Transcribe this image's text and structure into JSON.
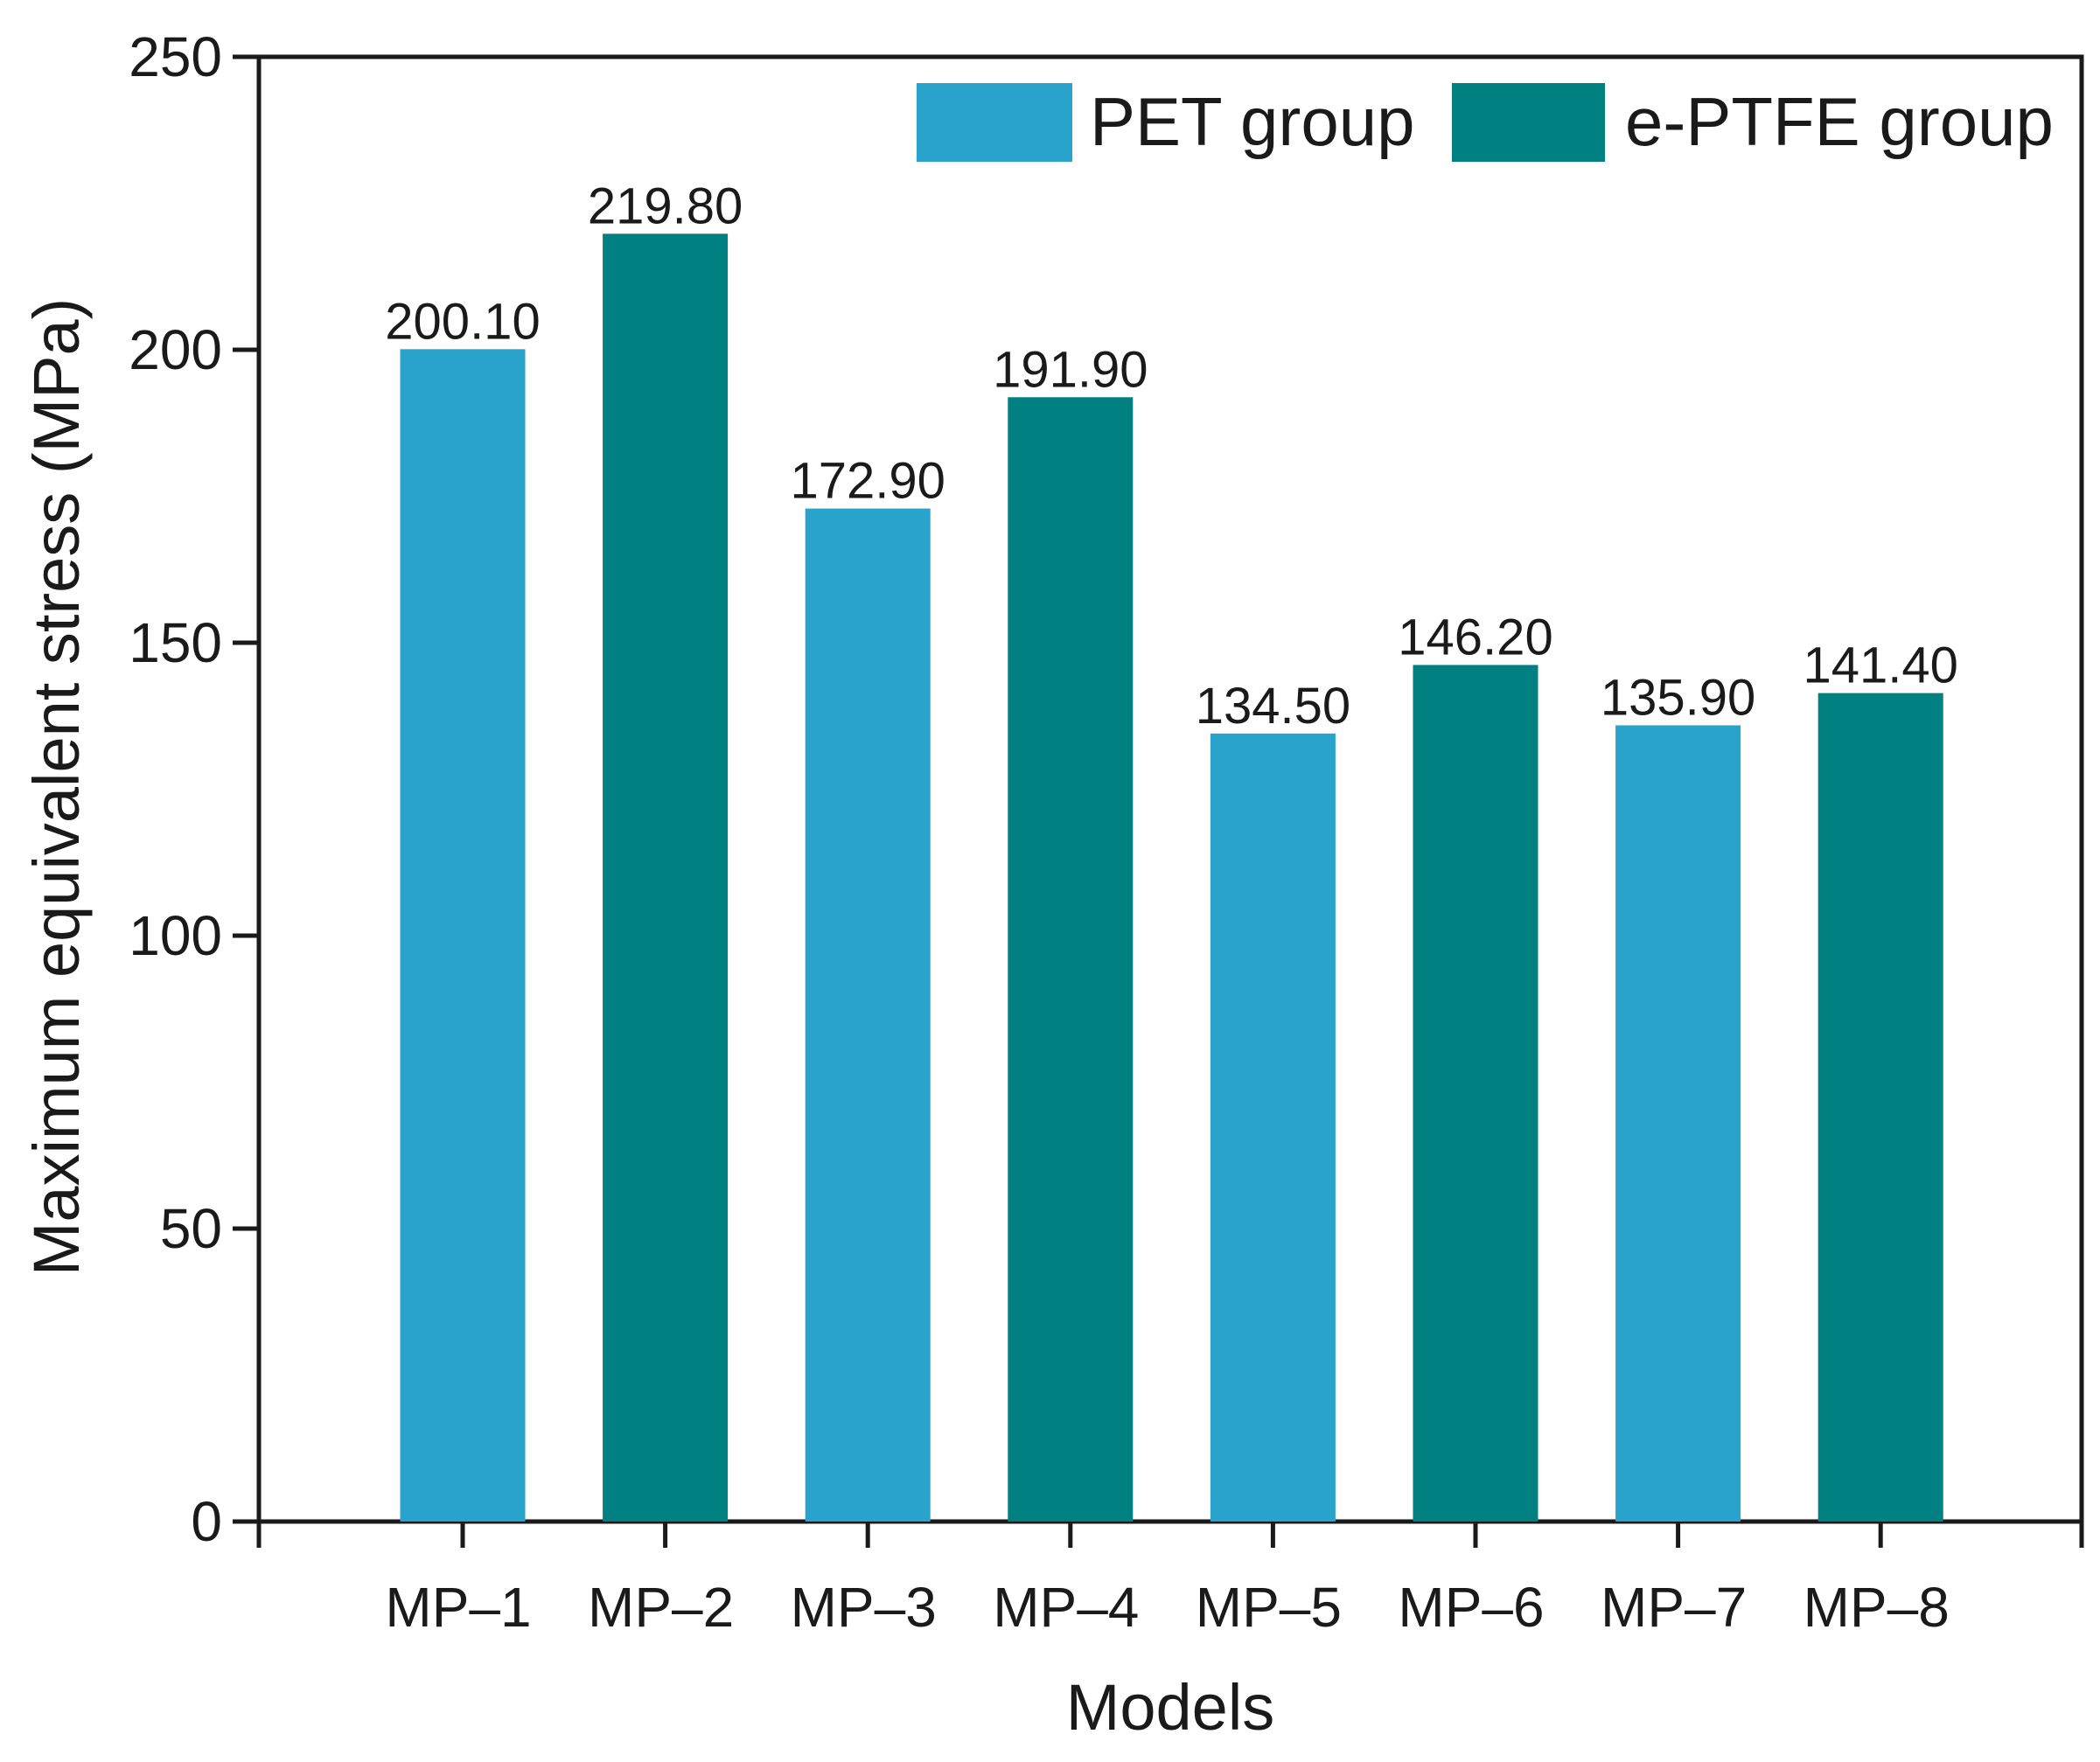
{
  "chart_data": {
    "type": "bar",
    "title": "",
    "xlabel": "Models",
    "ylabel": "Maximum equivalent stress  (MPa)",
    "ylim": [
      0,
      250
    ],
    "yticks": [
      0,
      50,
      100,
      150,
      200,
      250
    ],
    "grid": false,
    "legend_position": "top-right",
    "categories": [
      "MP–1",
      "MP–2",
      "MP–3",
      "MP–4",
      "MP–5",
      "MP–6",
      "MP–7",
      "MP–8"
    ],
    "values": [
      200.1,
      219.8,
      172.9,
      191.9,
      134.5,
      146.2,
      135.9,
      141.4
    ],
    "value_labels": [
      "200.10",
      "219.80",
      "172.90",
      "191.90",
      "134.50",
      "146.20",
      "135.90",
      "141.40"
    ],
    "bar_groups": [
      0,
      1,
      0,
      1,
      0,
      1,
      0,
      1
    ],
    "series": [
      {
        "name": "PET group",
        "color": "#29A3CC"
      },
      {
        "name": "e-PTFE group",
        "color": "#008080"
      }
    ]
  }
}
